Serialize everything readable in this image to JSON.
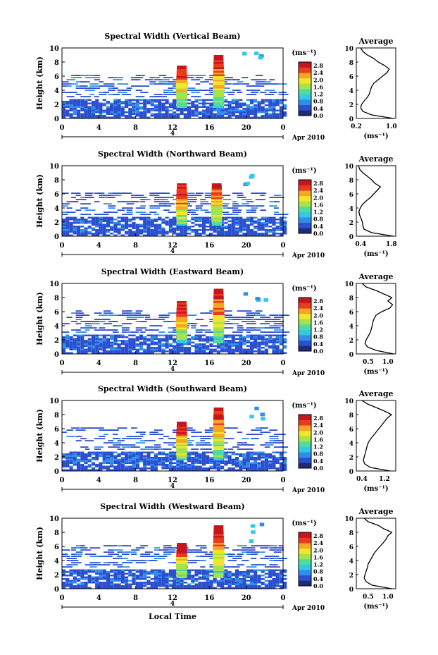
{
  "figure": {
    "month_label": "Apr 2010",
    "day_label": "4",
    "x_ticks": [
      "0",
      "4",
      "8",
      "12",
      "16",
      "20",
      "0"
    ],
    "x_label": "Local Time",
    "y_label": "Height (km)",
    "y_ticks": [
      "0",
      "2",
      "4",
      "6",
      "8",
      "10"
    ],
    "colorbar_unit": "(ms⁻¹)",
    "colorbar_ticks": [
      "0.0",
      "0.4",
      "0.8",
      "1.2",
      "1.6",
      "2.0",
      "2.4",
      "2.8"
    ],
    "avg_title": "Average",
    "avg_xlabel": "(ms⁻¹)",
    "colors": [
      "#1f2a78",
      "#2c4fd0",
      "#2f8ee8",
      "#33c8e6",
      "#4fdc9c",
      "#a6e24a",
      "#f2e62a",
      "#f5a623",
      "#ea3b1e",
      "#c4161c"
    ]
  },
  "chart_data": [
    {
      "type": "heatmap",
      "title": "Spectral Width (Vertical Beam)",
      "x_range_hours": [
        0,
        24
      ],
      "y_range_km": [
        0,
        10
      ],
      "z_range": [
        0.0,
        3.0
      ],
      "convective_cells": [
        {
          "time_h": 13.0,
          "top_km": 7.5
        },
        {
          "time_h": 17.0,
          "top_km": 8.8
        }
      ],
      "average_profile": {
        "type": "line",
        "xlim": [
          0.2,
          1.1
        ],
        "x_ticks": [
          "0.2",
          "1.0"
        ],
        "height_km": [
          0,
          0.5,
          1,
          1.5,
          2,
          2.5,
          3,
          3.5,
          4,
          4.5,
          5,
          5.5,
          6,
          6.5,
          7,
          7.5,
          8,
          8.5,
          9,
          9.5,
          10
        ],
        "values": [
          1.05,
          0.55,
          0.35,
          0.3,
          0.32,
          0.38,
          0.45,
          0.5,
          0.52,
          0.55,
          0.6,
          0.7,
          0.8,
          0.9,
          0.95,
          0.85,
          0.7,
          0.6,
          0.45,
          0.35,
          0.3
        ]
      }
    },
    {
      "type": "heatmap",
      "title": "Spectral Width (Northward Beam)",
      "x_range_hours": [
        0,
        24
      ],
      "y_range_km": [
        0,
        10
      ],
      "z_range": [
        0.0,
        3.0
      ],
      "convective_cells": [
        {
          "time_h": 13.0,
          "top_km": 7.5
        },
        {
          "time_h": 16.8,
          "top_km": 7.5
        }
      ],
      "average_profile": {
        "type": "line",
        "xlim": [
          0.2,
          2.0
        ],
        "x_ticks": [
          "0.4",
          "1.8"
        ],
        "height_km": [
          0,
          0.5,
          1,
          1.5,
          2,
          2.5,
          3,
          3.5,
          4,
          4.5,
          5,
          5.5,
          6,
          6.5,
          7,
          7.5,
          8,
          8.5,
          9,
          9.5,
          10
        ],
        "values": [
          1.9,
          0.9,
          0.55,
          0.5,
          0.48,
          0.42,
          0.35,
          0.32,
          0.38,
          0.48,
          0.65,
          0.85,
          1.0,
          1.15,
          1.3,
          1.05,
          0.9,
          0.7,
          0.5,
          0.35,
          0.3
        ]
      }
    },
    {
      "type": "heatmap",
      "title": "Spectral Width (Eastward Beam)",
      "x_range_hours": [
        0,
        24
      ],
      "y_range_km": [
        0,
        10
      ],
      "z_range": [
        0.0,
        3.0
      ],
      "convective_cells": [
        {
          "time_h": 13.0,
          "top_km": 7.5
        },
        {
          "time_h": 17.0,
          "top_km": 9.2
        }
      ],
      "average_profile": {
        "type": "line",
        "xlim": [
          0.2,
          1.2
        ],
        "x_ticks": [
          "0.5",
          "1.0"
        ],
        "height_km": [
          0,
          0.5,
          1,
          1.5,
          2,
          2.5,
          3,
          3.5,
          4,
          4.5,
          5,
          5.5,
          6,
          6.5,
          7,
          7.5,
          8,
          8.5,
          9,
          9.5,
          10
        ],
        "values": [
          1.15,
          0.7,
          0.48,
          0.42,
          0.45,
          0.5,
          0.55,
          0.58,
          0.6,
          0.62,
          0.65,
          0.7,
          0.85,
          1.05,
          1.12,
          1.0,
          1.1,
          0.9,
          0.7,
          0.45,
          0.35
        ]
      }
    },
    {
      "type": "heatmap",
      "title": "Spectral Width (Southward Beam)",
      "x_range_hours": [
        0,
        24
      ],
      "y_range_km": [
        0,
        10
      ],
      "z_range": [
        0.0,
        3.0
      ],
      "convective_cells": [
        {
          "time_h": 13.0,
          "top_km": 7.0
        },
        {
          "time_h": 17.0,
          "top_km": 9.0
        }
      ],
      "average_profile": {
        "type": "line",
        "xlim": [
          0.2,
          1.6
        ],
        "x_ticks": [
          "0.4",
          "1.2"
        ],
        "height_km": [
          0,
          0.5,
          1,
          1.5,
          2,
          2.5,
          3,
          3.5,
          4,
          4.5,
          5,
          5.5,
          6,
          6.5,
          7,
          7.5,
          8,
          8.5,
          9,
          9.5,
          10
        ],
        "values": [
          1.4,
          0.7,
          0.5,
          0.45,
          0.48,
          0.52,
          0.55,
          0.58,
          0.62,
          0.7,
          0.8,
          0.9,
          1.0,
          1.1,
          1.2,
          1.3,
          1.45,
          1.2,
          0.9,
          0.6,
          0.4
        ]
      }
    },
    {
      "type": "heatmap",
      "title": "Spectral Width (Westward Beam)",
      "x_range_hours": [
        0,
        24
      ],
      "y_range_km": [
        0,
        10
      ],
      "z_range": [
        0.0,
        3.0
      ],
      "convective_cells": [
        {
          "time_h": 13.0,
          "top_km": 6.5
        },
        {
          "time_h": 17.0,
          "top_km": 8.8
        }
      ],
      "average_profile": {
        "type": "line",
        "xlim": [
          0.2,
          1.2
        ],
        "x_ticks": [
          "0.5",
          "1.0"
        ],
        "height_km": [
          0,
          0.5,
          1,
          1.5,
          2,
          2.5,
          3,
          3.5,
          4,
          4.5,
          5,
          5.5,
          6,
          6.5,
          7,
          7.5,
          8,
          8.5,
          9,
          9.5,
          10
        ],
        "values": [
          1.1,
          0.6,
          0.45,
          0.4,
          0.42,
          0.45,
          0.48,
          0.5,
          0.55,
          0.6,
          0.65,
          0.72,
          0.8,
          0.88,
          0.95,
          1.0,
          1.1,
          0.9,
          0.75,
          0.5,
          0.4
        ]
      }
    }
  ]
}
